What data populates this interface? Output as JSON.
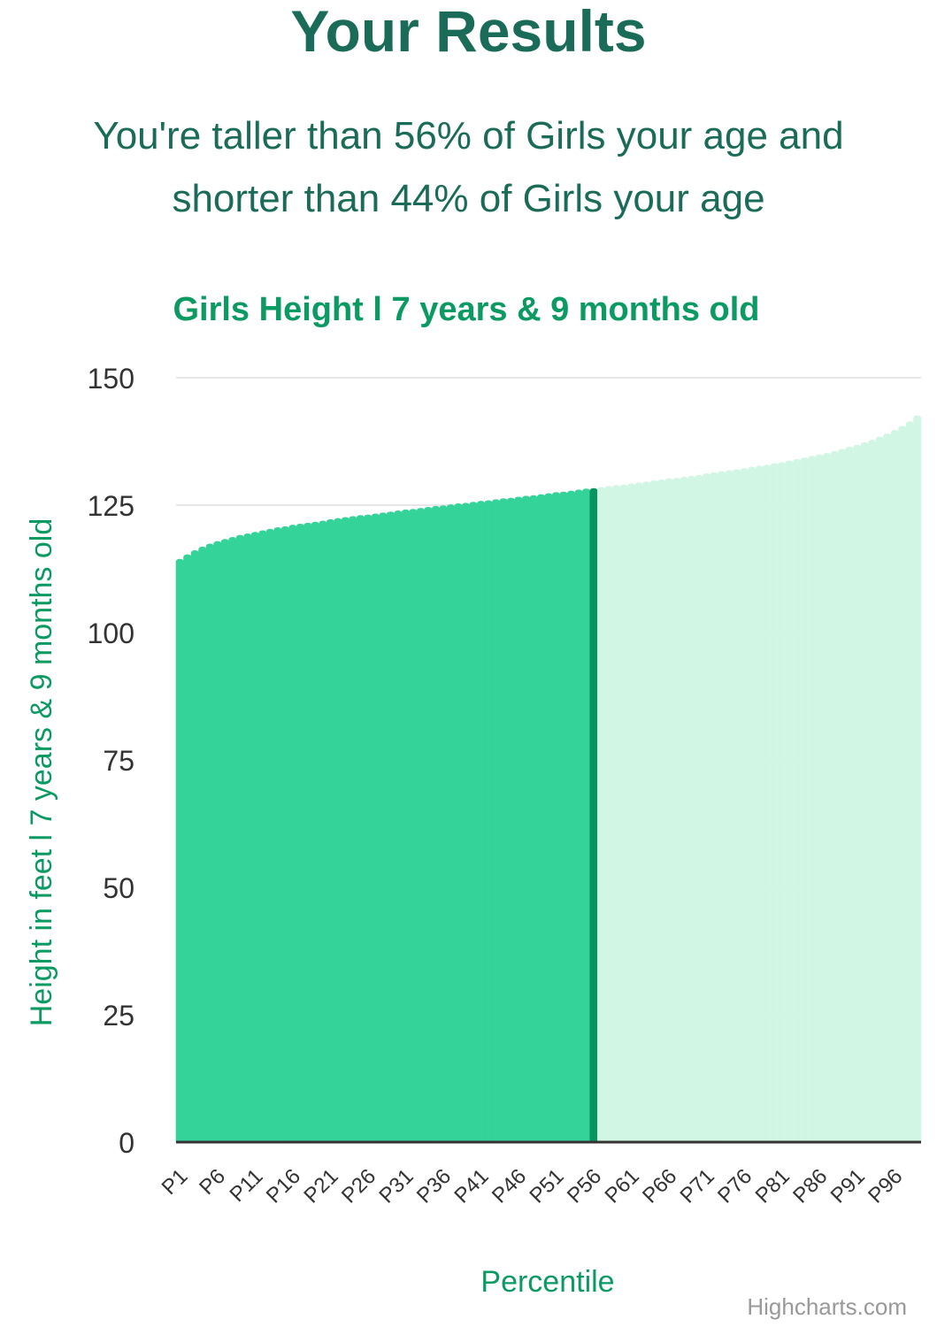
{
  "header": {
    "title": "Your Results",
    "result_line1": "You're taller than 56% of Girls your age and",
    "result_line2": "shorter than 44% of Girls your age"
  },
  "colors": {
    "title": "#1a6b57",
    "accent": "#0a9a62",
    "bar_below": "#34d399",
    "bar_above": "#d1f7e4",
    "marker": "#069460",
    "grid": "#e6e6e6",
    "axis_line": "#333333",
    "tick_text": "#333333",
    "credits": "#999999"
  },
  "chart_data": {
    "type": "bar",
    "title": "Girls Height l 7 years & 9 months old",
    "xlabel": "Percentile",
    "ylabel": "Height in feet l 7 years & 9 months old",
    "ylim": [
      0,
      150
    ],
    "yticks": [
      0,
      25,
      50,
      75,
      100,
      125,
      150
    ],
    "grid": true,
    "legend": false,
    "highlight_category": "P56",
    "credits": "Highcharts.com",
    "categories": [
      "P1",
      "P2",
      "P3",
      "P4",
      "P5",
      "P6",
      "P7",
      "P8",
      "P9",
      "P10",
      "P11",
      "P12",
      "P13",
      "P14",
      "P15",
      "P16",
      "P17",
      "P18",
      "P19",
      "P20",
      "P21",
      "P22",
      "P23",
      "P24",
      "P25",
      "P26",
      "P27",
      "P28",
      "P29",
      "P30",
      "P31",
      "P32",
      "P33",
      "P34",
      "P35",
      "P36",
      "P37",
      "P38",
      "P39",
      "P40",
      "P41",
      "P42",
      "P43",
      "P44",
      "P45",
      "P46",
      "P47",
      "P48",
      "P49",
      "P50",
      "P51",
      "P52",
      "P53",
      "P54",
      "P55",
      "P56",
      "P57",
      "P58",
      "P59",
      "P60",
      "P61",
      "P62",
      "P63",
      "P64",
      "P65",
      "P66",
      "P67",
      "P68",
      "P69",
      "P70",
      "P71",
      "P72",
      "P73",
      "P74",
      "P75",
      "P76",
      "P77",
      "P78",
      "P79",
      "P80",
      "P81",
      "P82",
      "P83",
      "P84",
      "P85",
      "P86",
      "P87",
      "P88",
      "P89",
      "P90",
      "P91",
      "P92",
      "P93",
      "P94",
      "P95",
      "P96",
      "P97",
      "P98",
      "P99"
    ],
    "tick_labels": [
      "P1",
      "P6",
      "P11",
      "P16",
      "P21",
      "P26",
      "P31",
      "P36",
      "P41",
      "P46",
      "P51",
      "P56",
      "P61",
      "P66",
      "P71",
      "P76",
      "P81",
      "P86",
      "P91",
      "P96"
    ],
    "values": [
      114.4,
      115.3,
      116.1,
      116.8,
      117.4,
      117.9,
      118.3,
      118.7,
      119.1,
      119.4,
      119.7,
      120.0,
      120.3,
      120.6,
      120.8,
      121.1,
      121.3,
      121.5,
      121.7,
      121.9,
      122.2,
      122.4,
      122.6,
      122.8,
      123.0,
      123.1,
      123.3,
      123.5,
      123.7,
      123.9,
      124.1,
      124.2,
      124.4,
      124.6,
      124.8,
      124.9,
      125.1,
      125.3,
      125.4,
      125.6,
      125.8,
      125.9,
      126.1,
      126.3,
      126.4,
      126.6,
      126.8,
      126.9,
      127.1,
      127.3,
      127.5,
      127.6,
      127.8,
      128.0,
      128.2,
      128.3,
      128.5,
      128.7,
      128.9,
      129.0,
      129.2,
      129.4,
      129.6,
      129.8,
      130.0,
      130.2,
      130.3,
      130.5,
      130.7,
      130.9,
      131.2,
      131.4,
      131.6,
      131.8,
      132.0,
      132.2,
      132.5,
      132.7,
      132.9,
      133.2,
      133.4,
      133.7,
      134.0,
      134.3,
      134.6,
      134.9,
      135.2,
      135.6,
      136.0,
      136.4,
      136.8,
      137.3,
      137.8,
      138.4,
      139.0,
      139.7,
      140.5,
      141.4,
      142.6
    ]
  }
}
